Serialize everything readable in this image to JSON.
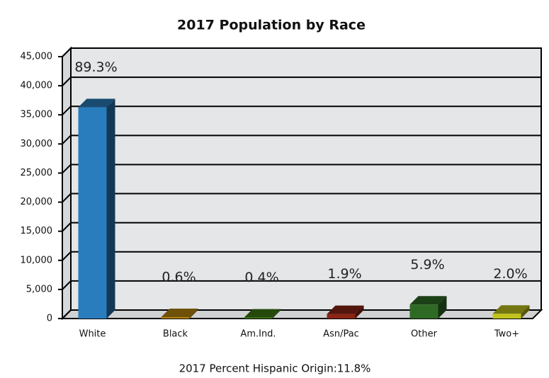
{
  "chart_data": {
    "type": "bar3d",
    "title": "2017 Population by Race",
    "categories": [
      "White",
      "Black",
      "Am.Ind.",
      "Asn/Pac",
      "Other",
      "Two+"
    ],
    "values": [
      36300,
      245,
      165,
      775,
      2400,
      815
    ],
    "percent_labels": [
      "89.3%",
      "0.6%",
      "0.4%",
      "1.9%",
      "5.9%",
      "2.0%"
    ],
    "colors": [
      "#2a7dbd",
      "#b8860b",
      "#3d7a12",
      "#8a2414",
      "#2f6a25",
      "#c2c41c"
    ],
    "ylim": [
      0,
      45000
    ],
    "yticks": [
      0,
      {
        "value": 5000,
        "label": "5,000"
      },
      {
        "value": 10000,
        "label": "10,000"
      },
      {
        "value": 15000,
        "label": "15,000"
      },
      {
        "value": 20000,
        "label": "20,000"
      },
      {
        "value": 25000,
        "label": "25,000"
      },
      {
        "value": 30000,
        "label": "30,000"
      },
      {
        "value": 35000,
        "label": "35,000"
      },
      {
        "value": 40000,
        "label": "40,000"
      },
      {
        "value": 45000,
        "label": "45,000"
      }
    ],
    "grid": true,
    "footnote": "2017 Percent Hispanic Origin:11.8%"
  }
}
